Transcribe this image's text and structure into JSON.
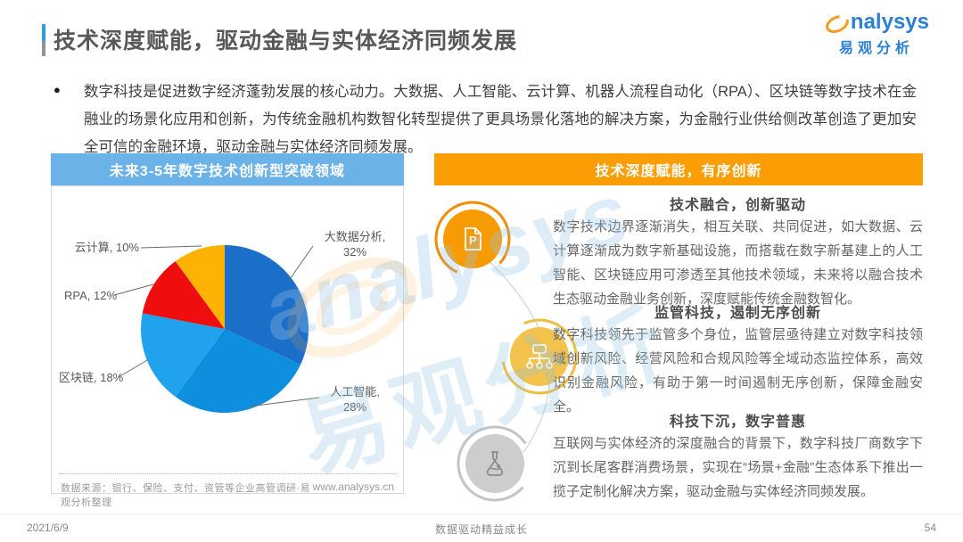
{
  "slide": {
    "title": "技术深度赋能，驱动金融与实体经济同频发展",
    "logo": {
      "brand": "nalysys",
      "brand_cn": "易观分析"
    },
    "bullet_marker": "●",
    "bullet": "数字科技是促进数字经济蓬勃发展的核心动力。大数据、人工智能、云计算、机器人流程自动化（RPA）、区块链等数字技术在金融业的场景化应用和创新，为传统金融机构数智化转型提供了更具场景化落地的解决方案，为金融行业供给侧改革创造了更加安全可信的金融环境，驱动金融与实体经济同频发展。",
    "footer": {
      "date": "2021/6/9",
      "slogan": "数据驱动精益成长",
      "page": "54"
    }
  },
  "left_panel": {
    "header": "未来3-5年数字技术创新型突破领域",
    "source": "数据来源：银行、保险、支付、资管等企业高管调研·易观分析整理",
    "website": "www.analysys.cn"
  },
  "right_panel": {
    "header": "技术深度赋能，有序创新",
    "sections": [
      {
        "icon": "document-p-icon",
        "title": "技术融合，创新驱动",
        "body": "数字技术边界逐渐消失，相互关联、共同促进，如大数据、云计算逐渐成为数字新基础设施，而搭载在数字新基建上的人工智能、区块链应用可渗透至其他技术领域，未来将以融合技术生态驱动金融业务创新，深度赋能传统金融数智化。"
      },
      {
        "icon": "sitemap-icon",
        "title": "监管科技，遏制无序创新",
        "body": "数字科技领先于监管多个身位，监管层亟待建立对数字科技领域创新风险、经营风险和合规风险等全域动态监控体系，高效识别金融风险，有助于第一时间遏制无序创新，保障金融安全。"
      },
      {
        "icon": "flask-icon",
        "title": "科技下沉，数字普惠",
        "body": "互联网与实体经济的深度融合的背景下，数字科技厂商数字下沉到长尾客群消费场景，实现在“场景+金融”生态体系下推出一揽子定制化解决方案，驱动金融与实体经济同频发展。"
      }
    ]
  },
  "chart_data": {
    "type": "pie",
    "title": "未来3-5年数字技术创新型突破领域",
    "labels": [
      "大数据分析",
      "人工智能",
      "区块链",
      "RPA",
      "云计算"
    ],
    "values": [
      32,
      28,
      18,
      12,
      10
    ],
    "unit": "%",
    "colors": [
      "#1c6fc8",
      "#0d8fdd",
      "#21a2ec",
      "#ef0e0e",
      "#fdb204"
    ],
    "start_angle_deg": 0,
    "direction": "clockwise",
    "legend": "none",
    "label_format": "name, value%"
  },
  "colors": {
    "accent_blue": "#2f9ce8",
    "panel_blue": "#6ab2e8",
    "panel_orange": "#fb9e04",
    "icon_orange": "#f79b04",
    "icon_gold": "#f3c34d",
    "icon_gray": "#cdcdcd"
  }
}
